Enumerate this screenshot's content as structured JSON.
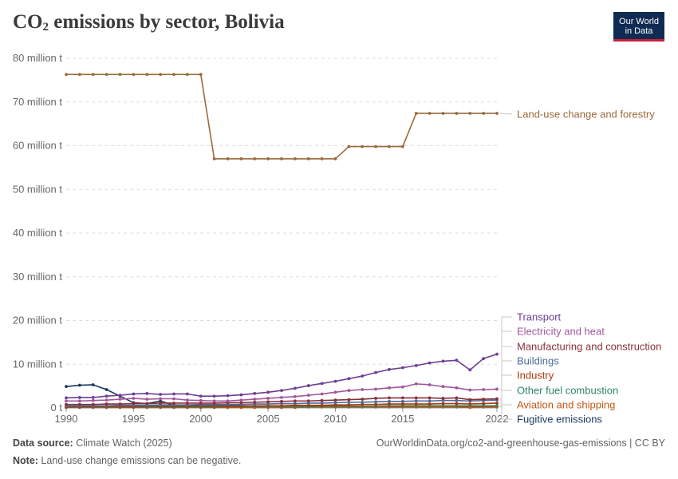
{
  "header": {
    "title_main": "CO",
    "title_sub": "2",
    "title_rest": " emissions by sector, Bolivia",
    "logo_line1": "Our World",
    "logo_line2": "in Data"
  },
  "footer": {
    "source_label": "Data source:",
    "source_text": " Climate Watch (2025)",
    "note_label": "Note:",
    "note_text": " Land-use change emissions can be negative.",
    "url": "OurWorldinData.org/co2-and-greenhouse-gas-emissions | CC BY"
  },
  "chart_data": {
    "type": "line",
    "title": "CO₂ emissions by sector, Bolivia",
    "y_ticks": [
      "0 t",
      "10 million t",
      "20 million t",
      "30 million t",
      "40 million t",
      "50 million t",
      "60 million t",
      "70 million t",
      "80 million t"
    ],
    "y_tick_values": [
      0,
      10,
      20,
      30,
      40,
      50,
      60,
      70,
      80
    ],
    "x_ticks": [
      "1990",
      "1995",
      "2000",
      "2005",
      "2010",
      "2015",
      "2022"
    ],
    "x_tick_values": [
      1990,
      1995,
      2000,
      2005,
      2010,
      2015,
      2022
    ],
    "xlim": [
      1990,
      2022
    ],
    "ylim": [
      0,
      80
    ],
    "units": "million t",
    "grid": "horizontal dashed",
    "legend": "right, labels at line ends",
    "x": [
      1990,
      1991,
      1992,
      1993,
      1994,
      1995,
      1996,
      1997,
      1998,
      1999,
      2000,
      2001,
      2002,
      2003,
      2004,
      2005,
      2006,
      2007,
      2008,
      2009,
      2010,
      2011,
      2012,
      2013,
      2014,
      2015,
      2016,
      2017,
      2018,
      2019,
      2020,
      2021,
      2022
    ],
    "series": [
      {
        "name": "Land-use change and forestry",
        "color": "#9a6a3a",
        "values": [
          76.3,
          76.3,
          76.3,
          76.3,
          76.3,
          76.3,
          76.3,
          76.3,
          76.3,
          76.3,
          76.3,
          57.0,
          57.0,
          57.0,
          57.0,
          57.0,
          57.0,
          57.0,
          57.0,
          57.0,
          57.0,
          59.8,
          59.8,
          59.8,
          59.8,
          59.8,
          67.4,
          67.4,
          67.4,
          67.4,
          67.4,
          67.4,
          67.4
        ]
      },
      {
        "name": "Transport",
        "color": "#6d3e91",
        "values": [
          2.3,
          2.4,
          2.4,
          2.7,
          2.9,
          3.2,
          3.3,
          3.1,
          3.2,
          3.2,
          2.7,
          2.7,
          2.8,
          3.0,
          3.3,
          3.6,
          4.0,
          4.5,
          5.1,
          5.6,
          6.1,
          6.7,
          7.3,
          8.1,
          8.8,
          9.2,
          9.7,
          10.3,
          10.7,
          10.9,
          8.7,
          11.3,
          12.3
        ]
      },
      {
        "name": "Electricity and heat",
        "color": "#a2559c",
        "values": [
          1.6,
          1.6,
          1.7,
          1.8,
          2.0,
          2.2,
          2.0,
          2.1,
          2.1,
          1.8,
          1.7,
          1.6,
          1.6,
          1.8,
          2.0,
          2.2,
          2.4,
          2.6,
          2.9,
          3.2,
          3.6,
          4.0,
          4.2,
          4.3,
          4.6,
          4.8,
          5.5,
          5.3,
          4.9,
          4.6,
          4.1,
          4.2,
          4.3
        ]
      },
      {
        "name": "Manufacturing and construction",
        "color": "#883039",
        "values": [
          0.8,
          0.8,
          0.8,
          0.9,
          0.9,
          1.0,
          1.0,
          1.1,
          1.1,
          1.1,
          1.1,
          1.1,
          1.2,
          1.2,
          1.3,
          1.4,
          1.5,
          1.6,
          1.6,
          1.7,
          1.8,
          1.9,
          2.0,
          2.2,
          2.3,
          2.3,
          2.3,
          2.3,
          2.2,
          2.3,
          1.9,
          2.0,
          2.1
        ]
      },
      {
        "name": "Buildings",
        "color": "#4c6a9c",
        "values": [
          0.5,
          0.5,
          0.5,
          0.5,
          0.6,
          0.6,
          0.6,
          0.7,
          0.7,
          0.7,
          0.8,
          0.8,
          0.8,
          0.8,
          0.9,
          0.9,
          1.0,
          1.0,
          1.1,
          1.1,
          1.2,
          1.3,
          1.3,
          1.4,
          1.5,
          1.5,
          1.6,
          1.6,
          1.7,
          1.7,
          1.6,
          1.7,
          1.8
        ]
      },
      {
        "name": "Industry",
        "color": "#b13507",
        "values": [
          0.3,
          0.3,
          0.3,
          0.3,
          0.3,
          0.3,
          0.4,
          0.4,
          0.4,
          0.4,
          0.4,
          0.4,
          0.4,
          0.4,
          0.5,
          0.5,
          0.5,
          0.6,
          0.6,
          0.6,
          0.7,
          0.7,
          0.8,
          0.8,
          0.9,
          0.9,
          0.9,
          0.9,
          1.0,
          1.0,
          0.9,
          1.0,
          1.1
        ]
      },
      {
        "name": "Other fuel combustion",
        "color": "#2c8465",
        "values": [
          0.2,
          0.2,
          0.2,
          0.2,
          0.2,
          0.2,
          0.2,
          0.2,
          0.2,
          0.2,
          0.2,
          0.2,
          0.3,
          0.3,
          0.3,
          0.3,
          0.3,
          0.3,
          0.3,
          0.4,
          0.4,
          0.4,
          0.4,
          0.4,
          0.5,
          0.5,
          0.5,
          0.5,
          0.5,
          0.5,
          0.5,
          0.5,
          0.5
        ]
      },
      {
        "name": "Aviation and shipping",
        "color": "#c05917",
        "values": [
          0.1,
          0.1,
          0.1,
          0.1,
          0.1,
          0.1,
          0.1,
          0.1,
          0.1,
          0.1,
          0.1,
          0.1,
          0.1,
          0.1,
          0.1,
          0.1,
          0.1,
          0.1,
          0.2,
          0.2,
          0.2,
          0.2,
          0.2,
          0.2,
          0.2,
          0.2,
          0.2,
          0.2,
          0.2,
          0.2,
          0.1,
          0.2,
          0.2
        ]
      },
      {
        "name": "Fugitive emissions",
        "color": "#18375f",
        "values": [
          4.9,
          5.2,
          5.3,
          4.2,
          2.7,
          1.2,
          1.0,
          1.6,
          0.6,
          0.6,
          0.5,
          0.5,
          0.5,
          0.5,
          0.4,
          0.4,
          0.4,
          0.3,
          0.3,
          0.3,
          0.3,
          0.3,
          0.3,
          0.3,
          0.3,
          0.3,
          0.3,
          0.3,
          0.3,
          0.3,
          0.3,
          0.3,
          0.3
        ]
      }
    ]
  }
}
